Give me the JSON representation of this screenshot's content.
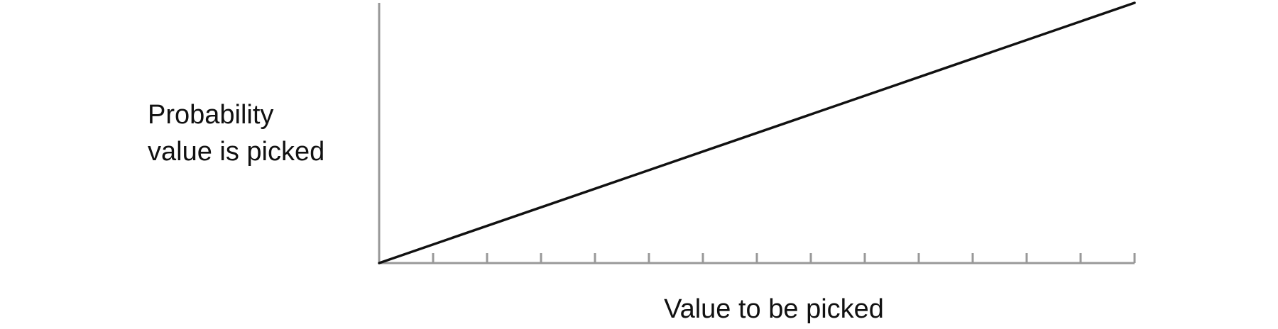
{
  "chart_data": {
    "type": "line",
    "title": "",
    "xlabel": "Value to be picked",
    "ylabel_lines": [
      "Probability",
      "value is picked"
    ],
    "x_ticks": 14,
    "x": [
      0,
      14
    ],
    "y": [
      0,
      1
    ],
    "xlim": [
      0,
      14
    ],
    "ylim": [
      0,
      1
    ],
    "grid": false,
    "colors": {
      "axis": "#999999",
      "line": "#111111",
      "text": "#111111"
    }
  }
}
